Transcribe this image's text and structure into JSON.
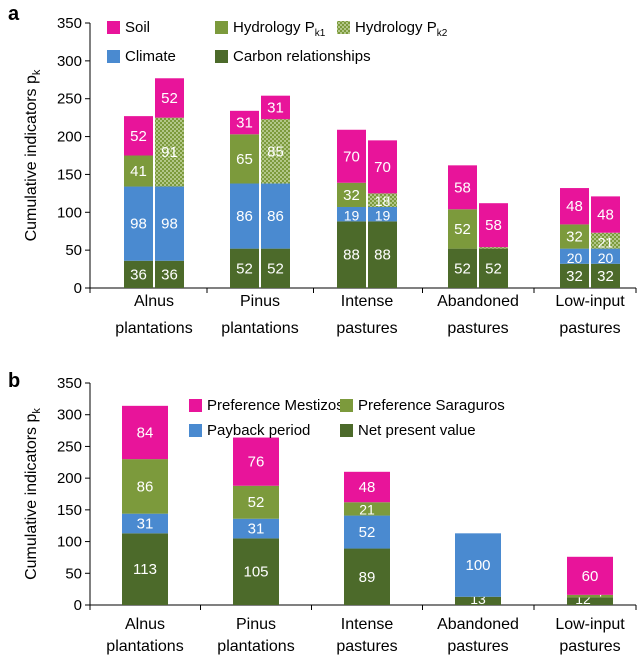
{
  "colors": {
    "soil": "#e8149a",
    "hydrology": "#7c9a3c",
    "hydrology_dots": "#d9e7bf",
    "climate": "#4a8ad0",
    "carbon": "#4c6a2a",
    "axis": "#000000",
    "label_text": "#ffffff"
  },
  "chart_data": [
    {
      "panel_label": "a",
      "type": "bar",
      "stacked": true,
      "ylabel_main": "Cumulative indicators p",
      "ylabel_sub": "k",
      "ylim": [
        0,
        350
      ],
      "yticks": [
        "0",
        "50",
        "100",
        "150",
        "200",
        "250",
        "300",
        "350"
      ],
      "grid": false,
      "legend_placement": "top-left",
      "categories": [
        [
          "Alnus",
          "plantations"
        ],
        [
          "Pinus",
          "plantations"
        ],
        [
          "Intense",
          "pastures"
        ],
        [
          "Abandoned",
          "pastures"
        ],
        [
          "Low-input",
          "pastures"
        ]
      ],
      "legend": [
        {
          "label": "Soil",
          "sub": "",
          "color": "#e8149a",
          "pattern": "solid"
        },
        {
          "label": "Hydrology P",
          "sub": "k1",
          "color": "#7c9a3c",
          "pattern": "solid"
        },
        {
          "label": "Hydrology P",
          "sub": "k2",
          "color": "#7c9a3c",
          "pattern": "dots"
        },
        {
          "label": "Climate",
          "sub": "",
          "color": "#4a8ad0",
          "pattern": "solid"
        },
        {
          "label": "Carbon relationships",
          "sub": "",
          "color": "#4c6a2a",
          "pattern": "solid"
        }
      ],
      "bars": [
        {
          "category": 0,
          "slot": 0,
          "segments": [
            {
              "series": "Carbon relationships",
              "value": 36,
              "label": "36",
              "color": "#4c6a2a",
              "pattern": "solid"
            },
            {
              "series": "Climate",
              "value": 98,
              "label": "98",
              "color": "#4a8ad0",
              "pattern": "solid"
            },
            {
              "series": "Hydrology Pk1",
              "value": 41,
              "label": "41",
              "color": "#7c9a3c",
              "pattern": "solid"
            },
            {
              "series": "Soil",
              "value": 52,
              "label": "52",
              "color": "#e8149a",
              "pattern": "solid"
            }
          ]
        },
        {
          "category": 0,
          "slot": 1,
          "segments": [
            {
              "series": "Carbon relationships",
              "value": 36,
              "label": "36",
              "color": "#4c6a2a",
              "pattern": "solid"
            },
            {
              "series": "Climate",
              "value": 98,
              "label": "98",
              "color": "#4a8ad0",
              "pattern": "solid"
            },
            {
              "series": "Hydrology Pk2",
              "value": 91,
              "label": "91",
              "color": "#7c9a3c",
              "pattern": "dots"
            },
            {
              "series": "Soil",
              "value": 52,
              "label": "52",
              "color": "#e8149a",
              "pattern": "solid"
            }
          ]
        },
        {
          "category": 1,
          "slot": 0,
          "segments": [
            {
              "series": "Carbon relationships",
              "value": 52,
              "label": "52",
              "color": "#4c6a2a",
              "pattern": "solid"
            },
            {
              "series": "Climate",
              "value": 86,
              "label": "86",
              "color": "#4a8ad0",
              "pattern": "solid"
            },
            {
              "series": "Hydrology Pk1",
              "value": 65,
              "label": "65",
              "color": "#7c9a3c",
              "pattern": "solid"
            },
            {
              "series": "Soil",
              "value": 31,
              "label": "31",
              "color": "#e8149a",
              "pattern": "solid"
            }
          ]
        },
        {
          "category": 1,
          "slot": 1,
          "segments": [
            {
              "series": "Carbon relationships",
              "value": 52,
              "label": "52",
              "color": "#4c6a2a",
              "pattern": "solid"
            },
            {
              "series": "Climate",
              "value": 86,
              "label": "86",
              "color": "#4a8ad0",
              "pattern": "solid"
            },
            {
              "series": "Hydrology Pk2",
              "value": 85,
              "label": "85",
              "color": "#7c9a3c",
              "pattern": "dots"
            },
            {
              "series": "Soil",
              "value": 31,
              "label": "31",
              "color": "#e8149a",
              "pattern": "solid"
            }
          ]
        },
        {
          "category": 2,
          "slot": 0,
          "segments": [
            {
              "series": "Carbon relationships",
              "value": 88,
              "label": "88",
              "color": "#4c6a2a",
              "pattern": "solid"
            },
            {
              "series": "Climate",
              "value": 19,
              "label": "19",
              "color": "#4a8ad0",
              "pattern": "solid"
            },
            {
              "series": "Hydrology Pk1",
              "value": 32,
              "label": "32",
              "color": "#7c9a3c",
              "pattern": "solid"
            },
            {
              "series": "Soil",
              "value": 70,
              "label": "70",
              "color": "#e8149a",
              "pattern": "solid"
            }
          ]
        },
        {
          "category": 2,
          "slot": 1,
          "segments": [
            {
              "series": "Carbon relationships",
              "value": 88,
              "label": "88",
              "color": "#4c6a2a",
              "pattern": "solid"
            },
            {
              "series": "Climate",
              "value": 19,
              "label": "19",
              "color": "#4a8ad0",
              "pattern": "solid"
            },
            {
              "series": "Hydrology Pk2",
              "value": 18,
              "label": "18",
              "color": "#7c9a3c",
              "pattern": "dots"
            },
            {
              "series": "Soil",
              "value": 70,
              "label": "70",
              "color": "#e8149a",
              "pattern": "solid"
            }
          ]
        },
        {
          "category": 3,
          "slot": 0,
          "segments": [
            {
              "series": "Carbon relationships",
              "value": 52,
              "label": "52",
              "color": "#4c6a2a",
              "pattern": "solid"
            },
            {
              "series": "Hydrology Pk1",
              "value": 52,
              "label": "52",
              "color": "#7c9a3c",
              "pattern": "solid"
            },
            {
              "series": "Soil",
              "value": 58,
              "label": "58",
              "color": "#e8149a",
              "pattern": "solid"
            }
          ]
        },
        {
          "category": 3,
          "slot": 1,
          "segments": [
            {
              "series": "Carbon relationships",
              "value": 52,
              "label": "52",
              "color": "#4c6a2a",
              "pattern": "solid"
            },
            {
              "series": "Hydrology Pk2",
              "value": 2,
              "label": "",
              "color": "#7c9a3c",
              "pattern": "dots"
            },
            {
              "series": "Soil",
              "value": 58,
              "label": "58",
              "color": "#e8149a",
              "pattern": "solid"
            }
          ]
        },
        {
          "category": 4,
          "slot": 0,
          "segments": [
            {
              "series": "Carbon relationships",
              "value": 32,
              "label": "32",
              "color": "#4c6a2a",
              "pattern": "solid"
            },
            {
              "series": "Climate",
              "value": 20,
              "label": "20",
              "color": "#4a8ad0",
              "pattern": "solid"
            },
            {
              "series": "Hydrology Pk1",
              "value": 32,
              "label": "32",
              "color": "#7c9a3c",
              "pattern": "solid"
            },
            {
              "series": "Soil",
              "value": 48,
              "label": "48",
              "color": "#e8149a",
              "pattern": "solid"
            }
          ]
        },
        {
          "category": 4,
          "slot": 1,
          "segments": [
            {
              "series": "Carbon relationships",
              "value": 32,
              "label": "32",
              "color": "#4c6a2a",
              "pattern": "solid"
            },
            {
              "series": "Climate",
              "value": 20,
              "label": "20",
              "color": "#4a8ad0",
              "pattern": "solid"
            },
            {
              "series": "Hydrology Pk2",
              "value": 21,
              "label": "21",
              "color": "#7c9a3c",
              "pattern": "dots"
            },
            {
              "series": "Soil",
              "value": 48,
              "label": "48",
              "color": "#e8149a",
              "pattern": "solid"
            }
          ]
        }
      ]
    },
    {
      "panel_label": "b",
      "type": "bar",
      "stacked": true,
      "ylabel_main": "Cumulative indicators p",
      "ylabel_sub": "k",
      "ylim": [
        0,
        350
      ],
      "yticks": [
        "0",
        "50",
        "100",
        "150",
        "200",
        "250",
        "300",
        "350"
      ],
      "grid": false,
      "legend_placement": "top-center",
      "categories": [
        [
          "Alnus",
          "plantations"
        ],
        [
          "Pinus",
          "plantations"
        ],
        [
          "Intense",
          "pastures"
        ],
        [
          "Abandoned",
          "pastures"
        ],
        [
          "Low-input",
          "pastures"
        ]
      ],
      "legend": [
        {
          "label": "Preference Mestizos",
          "sub": "",
          "color": "#e8149a",
          "pattern": "solid"
        },
        {
          "label": "Preference Saraguros",
          "sub": "",
          "color": "#7c9a3c",
          "pattern": "solid"
        },
        {
          "label": "Payback period",
          "sub": "",
          "color": "#4a8ad0",
          "pattern": "solid"
        },
        {
          "label": "Net present value",
          "sub": "",
          "color": "#4c6a2a",
          "pattern": "solid"
        }
      ],
      "bars": [
        {
          "category": 0,
          "slot": 0,
          "segments": [
            {
              "series": "Net present value",
              "value": 113,
              "label": "113",
              "color": "#4c6a2a",
              "pattern": "solid"
            },
            {
              "series": "Payback period",
              "value": 31,
              "label": "31",
              "color": "#4a8ad0",
              "pattern": "solid"
            },
            {
              "series": "Preference Saraguros",
              "value": 86,
              "label": "86",
              "color": "#7c9a3c",
              "pattern": "solid"
            },
            {
              "series": "Preference Mestizos",
              "value": 84,
              "label": "84",
              "color": "#e8149a",
              "pattern": "solid"
            }
          ]
        },
        {
          "category": 1,
          "slot": 0,
          "segments": [
            {
              "series": "Net present value",
              "value": 105,
              "label": "105",
              "color": "#4c6a2a",
              "pattern": "solid"
            },
            {
              "series": "Payback period",
              "value": 31,
              "label": "31",
              "color": "#4a8ad0",
              "pattern": "solid"
            },
            {
              "series": "Preference Saraguros",
              "value": 52,
              "label": "52",
              "color": "#7c9a3c",
              "pattern": "solid"
            },
            {
              "series": "Preference Mestizos",
              "value": 76,
              "label": "76",
              "color": "#e8149a",
              "pattern": "solid"
            }
          ]
        },
        {
          "category": 2,
          "slot": 0,
          "segments": [
            {
              "series": "Net present value",
              "value": 89,
              "label": "89",
              "color": "#4c6a2a",
              "pattern": "solid"
            },
            {
              "series": "Payback period",
              "value": 52,
              "label": "52",
              "color": "#4a8ad0",
              "pattern": "solid"
            },
            {
              "series": "Preference Saraguros",
              "value": 21,
              "label": "21",
              "color": "#7c9a3c",
              "pattern": "solid"
            },
            {
              "series": "Preference Mestizos",
              "value": 48,
              "label": "48",
              "color": "#e8149a",
              "pattern": "solid"
            }
          ]
        },
        {
          "category": 3,
          "slot": 0,
          "segments": [
            {
              "series": "Net present value",
              "value": 13,
              "label": "13",
              "color": "#4c6a2a",
              "pattern": "solid"
            },
            {
              "series": "Payback period",
              "value": 100,
              "label": "100",
              "color": "#4a8ad0",
              "pattern": "solid"
            }
          ]
        },
        {
          "category": 4,
          "slot": 0,
          "segments": [
            {
              "series": "Net present value",
              "value": 12,
              "label": "12",
              "color": "#4c6a2a",
              "pattern": "solid"
            },
            {
              "series": "Preference Saraguros",
              "value": 4,
              "label": "4",
              "color": "#7c9a3c",
              "pattern": "solid"
            },
            {
              "series": "Preference Mestizos",
              "value": 60,
              "label": "60",
              "color": "#e8149a",
              "pattern": "solid"
            }
          ]
        }
      ]
    }
  ]
}
